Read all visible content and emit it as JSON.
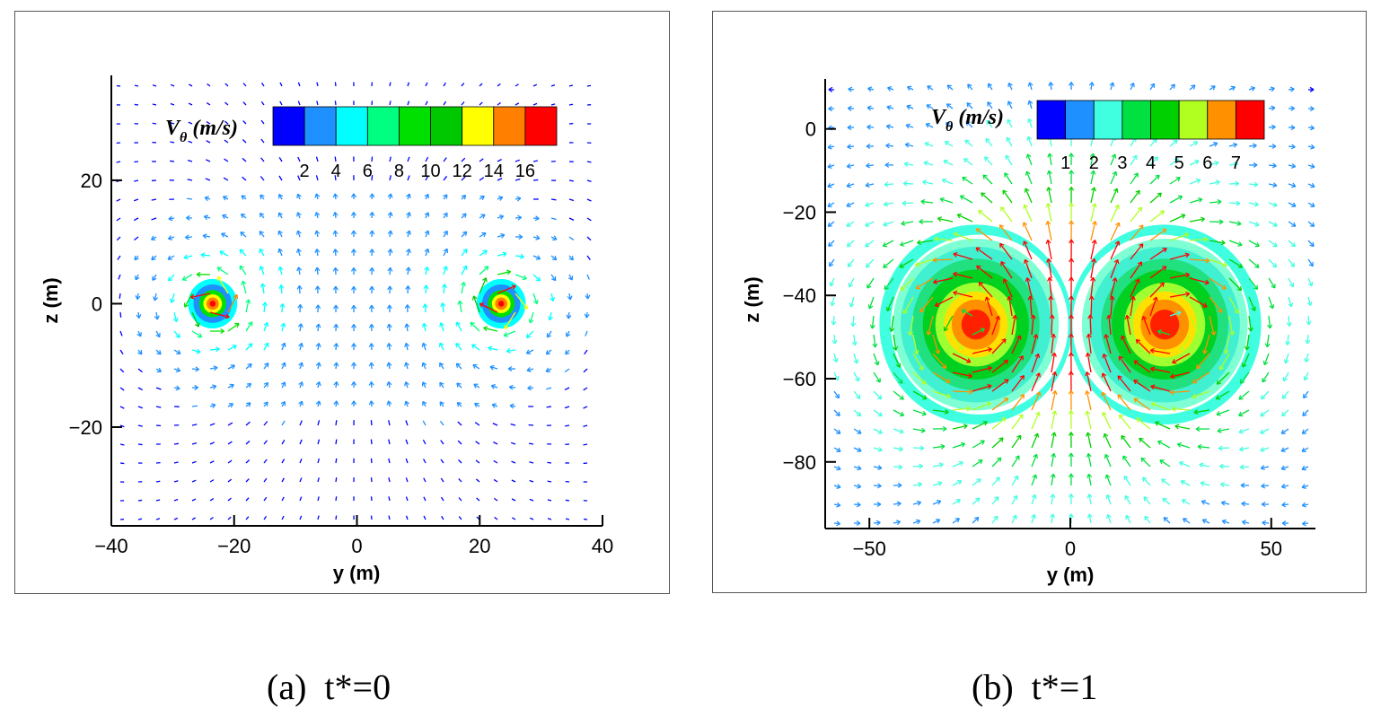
{
  "chart_data": [
    {
      "type": "vector-contour",
      "panel_label": "(a)",
      "caption_expr": "t*=0",
      "xlabel": "y (m)",
      "ylabel": "z (m)",
      "xlim": [
        -40,
        40
      ],
      "ylim": [
        -36,
        37
      ],
      "xticks": [
        -40,
        -20,
        0,
        20,
        40
      ],
      "yticks": [
        -20,
        0,
        20
      ],
      "colorbar": {
        "title_main": "V",
        "title_sub": "θ",
        "title_unit": "(m/s)",
        "labels": [
          "2",
          "4",
          "6",
          "8",
          "10",
          "12",
          "14",
          "16"
        ],
        "colors": [
          "#0000ff",
          "#1e90ff",
          "#00ffff",
          "#00ff80",
          "#00e000",
          "#00c800",
          "#ffff00",
          "#ff8000",
          "#ff0000"
        ]
      },
      "vortices": [
        {
          "y": -23.5,
          "z": 0,
          "core_radius": 4.0,
          "sign": 1
        },
        {
          "y": 23.5,
          "z": 0,
          "core_radius": 4.0,
          "sign": -1
        }
      ],
      "vmax": 16
    },
    {
      "type": "vector-contour",
      "panel_label": "(b)",
      "caption_expr": "t*=1",
      "xlabel": "y (m)",
      "ylabel": "z (m)",
      "xlim": [
        -61,
        61
      ],
      "ylim": [
        -96,
        12
      ],
      "xticks": [
        -50,
        0,
        50
      ],
      "yticks": [
        0,
        -20,
        -40,
        -60,
        -80
      ],
      "colorbar": {
        "title_main": "V",
        "title_sub": "θ",
        "title_unit": "(m/s)",
        "labels": [
          "1",
          "2",
          "3",
          "4",
          "5",
          "6",
          "7"
        ],
        "colors": [
          "#0000ff",
          "#1e90ff",
          "#40ffe0",
          "#00e040",
          "#00d000",
          "#b0ff20",
          "#ff9000",
          "#ff0000"
        ]
      },
      "vortices": [
        {
          "y": -23.5,
          "z": -47,
          "core_radius": 24,
          "sign": 1
        },
        {
          "y": 23.5,
          "z": -47,
          "core_radius": 24,
          "sign": -1
        }
      ],
      "vmax": 7
    }
  ]
}
